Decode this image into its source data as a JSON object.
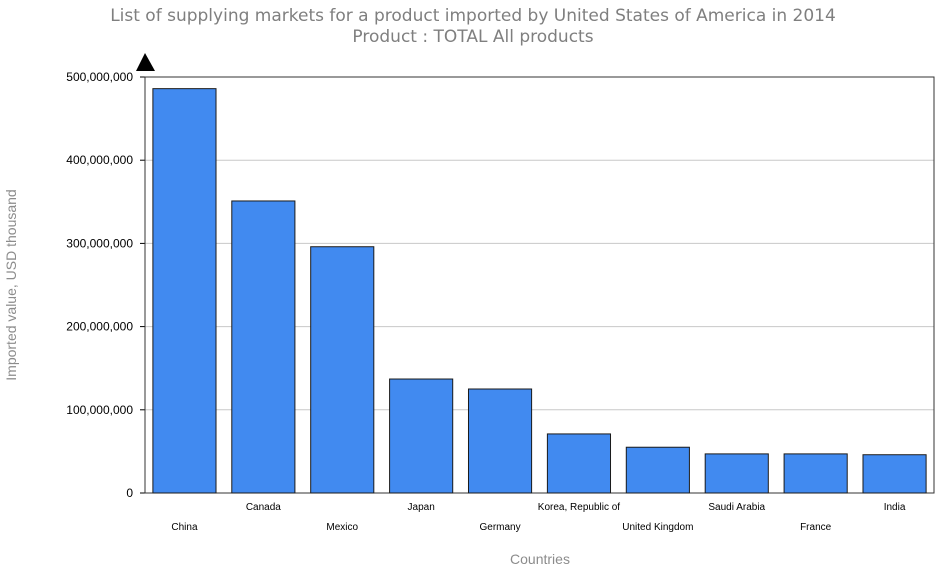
{
  "chart_data": {
    "type": "bar",
    "title": "List of supplying markets for a product imported by United States of America in 2014",
    "subtitle": "Product : TOTAL All products",
    "xlabel": "Countries",
    "ylabel": "Imported value, USD thousand",
    "categories": [
      "China",
      "Canada",
      "Mexico",
      "Japan",
      "Germany",
      "Korea, Republic of",
      "United Kingdom",
      "Saudi Arabia",
      "France",
      "India"
    ],
    "values": [
      486000000,
      351000000,
      296000000,
      137000000,
      125000000,
      71000000,
      55000000,
      47000000,
      47000000,
      46000000
    ],
    "yticks": [
      "0",
      "100,000,000",
      "200,000,000",
      "300,000,000",
      "400,000,000",
      "500,000,000"
    ],
    "ylim": [
      0,
      500000000
    ],
    "grid": true,
    "bar_color": "#418af0",
    "legend": "none"
  }
}
